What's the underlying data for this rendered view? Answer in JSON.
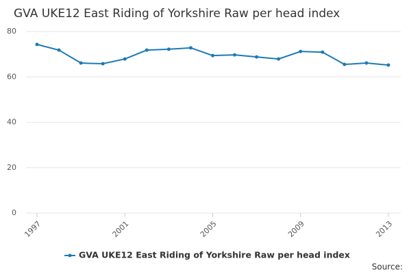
{
  "chart_data": {
    "type": "line",
    "title": "GVA UKE12 East Riding of Yorkshire Raw per head index",
    "x": [
      1997,
      1998,
      1999,
      2000,
      2001,
      2002,
      2003,
      2004,
      2005,
      2006,
      2007,
      2008,
      2009,
      2010,
      2011,
      2012,
      2013
    ],
    "series": [
      {
        "name": "GVA UKE12 East Riding of Yorkshire Raw per head index",
        "color": "#1a7ab5",
        "values": [
          74.3,
          71.8,
          66.1,
          65.8,
          67.9,
          71.8,
          72.2,
          72.8,
          69.4,
          69.7,
          68.8,
          67.9,
          71.2,
          70.9,
          65.5,
          66.1,
          65.2
        ]
      }
    ],
    "xlim": [
      1997,
      2013
    ],
    "xticks": [
      1997,
      2001,
      2005,
      2009,
      2013
    ],
    "ylim": [
      0,
      80
    ],
    "yticks": [
      0,
      20,
      40,
      60,
      80
    ],
    "grid": true,
    "legend": "bottom",
    "source": "Source:"
  }
}
